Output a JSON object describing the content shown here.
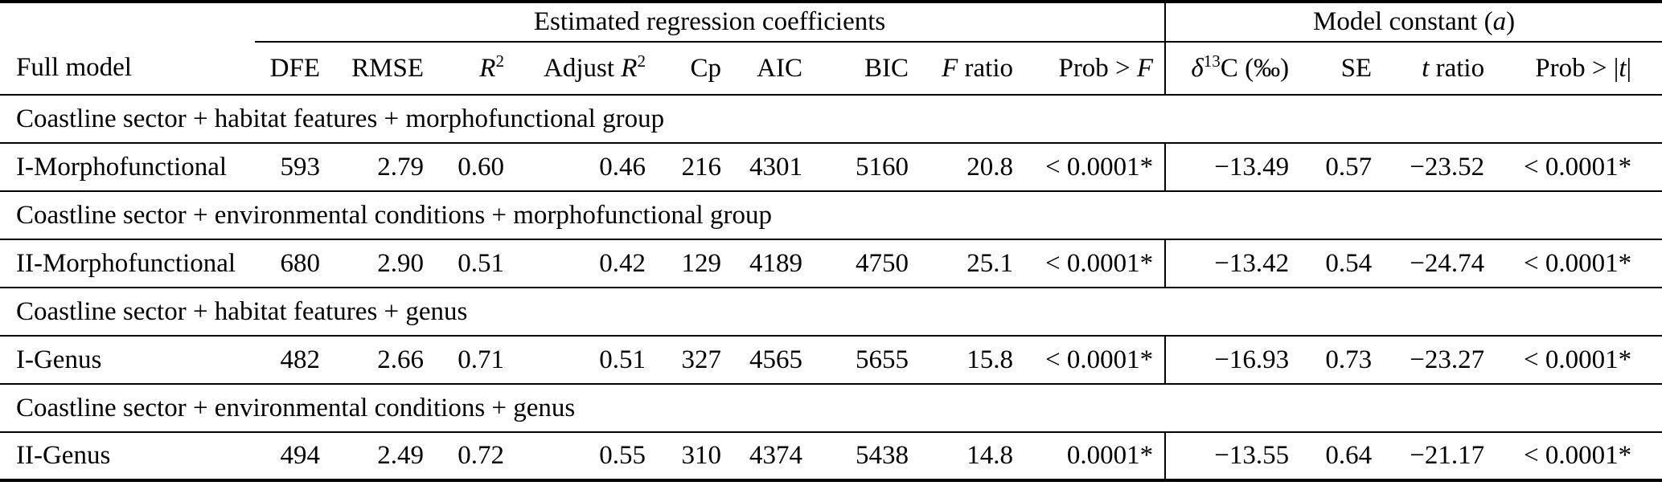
{
  "colors": {
    "text": "#000000",
    "rules": "#000000",
    "background": "#ffffff"
  },
  "table": {
    "spanners": [
      {
        "parts": [
          {
            "t": "Estimated regression coefficients"
          }
        ]
      },
      {
        "parts": [
          {
            "t": "Model constant ("
          },
          {
            "t": "a",
            "s": "i"
          },
          {
            "t": ")"
          }
        ]
      }
    ],
    "columns": [
      {
        "parts": [
          {
            "t": "Full model"
          }
        ]
      },
      {
        "parts": [
          {
            "t": "DFE"
          }
        ]
      },
      {
        "parts": [
          {
            "t": "RMSE"
          }
        ]
      },
      {
        "parts": [
          {
            "t": "R",
            "s": "i"
          },
          {
            "t": "2",
            "s": "sup"
          }
        ]
      },
      {
        "parts": [
          {
            "t": "Adjust "
          },
          {
            "t": "R",
            "s": "i"
          },
          {
            "t": "2",
            "s": "sup"
          }
        ]
      },
      {
        "parts": [
          {
            "t": "Cp"
          }
        ]
      },
      {
        "parts": [
          {
            "t": "AIC"
          }
        ]
      },
      {
        "parts": [
          {
            "t": "BIC"
          }
        ]
      },
      {
        "parts": [
          {
            "t": "F",
            "s": "i"
          },
          {
            "t": " ratio"
          }
        ]
      },
      {
        "parts": [
          {
            "t": "Prob > "
          },
          {
            "t": "F",
            "s": "i"
          }
        ]
      },
      {
        "parts": [
          {
            "t": "δ",
            "s": "i"
          },
          {
            "t": "13",
            "s": "sup"
          },
          {
            "t": "C (‰)"
          }
        ]
      },
      {
        "parts": [
          {
            "t": "SE"
          }
        ]
      },
      {
        "parts": [
          {
            "t": "t",
            "s": "i"
          },
          {
            "t": " ratio"
          }
        ]
      },
      {
        "parts": [
          {
            "t": "Prob > |"
          },
          {
            "t": "t",
            "s": "i"
          },
          {
            "t": "|"
          }
        ]
      }
    ],
    "sections": [
      {
        "title": "Coastline sector + habitat features + morphofunctional group",
        "row": {
          "label": "I-Morphofunctional",
          "values": [
            "593",
            "2.79",
            "0.60",
            "0.46",
            "216",
            "4301",
            "5160",
            "20.8",
            "< 0.0001*",
            "−13.49",
            "0.57",
            "−23.52",
            "< 0.0001*"
          ]
        }
      },
      {
        "title": "Coastline sector + environmental conditions + morphofunctional group",
        "row": {
          "label": "II-Morphofunctional",
          "values": [
            "680",
            "2.90",
            "0.51",
            "0.42",
            "129",
            "4189",
            "4750",
            "25.1",
            "< 0.0001*",
            "−13.42",
            "0.54",
            "−24.74",
            "< 0.0001*"
          ]
        }
      },
      {
        "title": "Coastline sector + habitat features + genus",
        "row": {
          "label": "I-Genus",
          "values": [
            "482",
            "2.66",
            "0.71",
            "0.51",
            "327",
            "4565",
            "5655",
            "15.8",
            "< 0.0001*",
            "−16.93",
            "0.73",
            "−23.27",
            "< 0.0001*"
          ]
        }
      },
      {
        "title": "Coastline sector + environmental conditions + genus",
        "row": {
          "label": "II-Genus",
          "values": [
            "494",
            "2.49",
            "0.72",
            "0.55",
            "310",
            "4374",
            "5438",
            "14.8",
            "0.0001*",
            "−13.55",
            "0.64",
            "−21.17",
            "< 0.0001*"
          ]
        }
      }
    ]
  }
}
